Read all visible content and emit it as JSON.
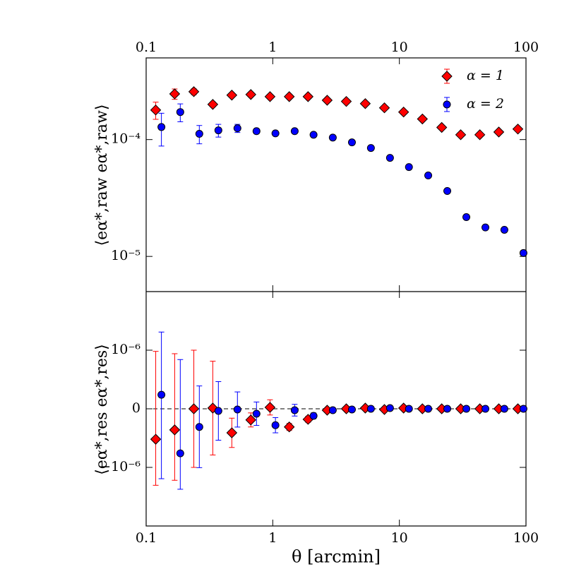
{
  "chart_data": [
    {
      "type": "scatter",
      "xscale": "log",
      "yscale": "log",
      "xlim": [
        0.1,
        100
      ],
      "xticks": [
        0.1,
        1,
        10,
        100
      ],
      "ylim": [
        5e-06,
        0.0005
      ],
      "yticks": [
        {
          "value": 0.0001,
          "label": "10⁻⁴"
        },
        {
          "value": 1e-05,
          "label": "10⁻⁵"
        }
      ],
      "ylabel": "⟨eα*,raw eα*,raw⟩",
      "legend": "upper right",
      "series": [
        {
          "name": "α = 1",
          "color": "#ff0000",
          "marker": "diamond",
          "x": [
            0.119,
            0.168,
            0.238,
            0.336,
            0.475,
            0.671,
            0.951,
            1.35,
            1.9,
            2.69,
            3.81,
            5.38,
            7.62,
            10.8,
            15.2,
            21.6,
            30.5,
            43.2,
            61.0,
            86.3
          ],
          "values": [
            0.000179,
            0.000246,
            0.000257,
            0.0002,
            0.00024,
            0.000243,
            0.000233,
            0.000233,
            0.000233,
            0.000217,
            0.000212,
            0.000203,
            0.000187,
            0.000172,
            0.00015,
            0.000127,
            0.00011,
            0.00011,
            0.000116,
            0.000123
          ],
          "errors": [
            3e-05,
            2.5e-05,
            1.5e-05,
            1e-05,
            5e-06,
            4e-06,
            4e-06,
            3e-06,
            3e-06,
            3e-06,
            3e-06,
            3e-06,
            2e-06,
            2e-06,
            2e-06,
            2e-06,
            2e-06,
            2e-06,
            2e-06,
            2e-06
          ]
        },
        {
          "name": "α = 2",
          "color": "#0000ff",
          "marker": "circle",
          "x": [
            0.132,
            0.186,
            0.263,
            0.372,
            0.526,
            0.744,
            1.05,
            1.49,
            2.1,
            2.98,
            4.22,
            5.96,
            8.43,
            11.9,
            16.9,
            23.9,
            33.8,
            47.8,
            67.5,
            95.5
          ],
          "values": [
            0.000128,
            0.000172,
            0.000112,
            0.00012,
            0.000125,
            0.000118,
            0.000113,
            0.000118,
            0.00011,
            0.000104,
            9.46e-05,
            8.47e-05,
            6.97e-05,
            5.82e-05,
            4.93e-05,
            3.63e-05,
            2.17e-05,
            1.77e-05,
            1.69e-05,
            1.07e-05
          ],
          "errors": [
            4e-05,
            3e-05,
            2e-05,
            1.5e-05,
            1e-05,
            6e-06,
            4e-06,
            3e-06,
            2e-06,
            2e-06,
            2e-06,
            2e-06,
            1e-06,
            1e-06,
            1e-06,
            1e-06,
            5e-07,
            5e-07,
            5e-07,
            5e-07
          ]
        }
      ]
    },
    {
      "type": "scatter",
      "xscale": "log",
      "yscale": "symlog",
      "linthresh": 1e-06,
      "xlim": [
        0.1,
        100
      ],
      "xticks": [
        0.1,
        1,
        10,
        100
      ],
      "ylim": [
        -1e-05,
        1e-05
      ],
      "yticks": [
        {
          "value": 1e-06,
          "label": "10⁻⁶"
        },
        0,
        {
          "value": -1e-06,
          "label": "−10⁻⁶"
        }
      ],
      "ylabel": "⟨eα*,res eα*,res⟩",
      "xlabel": "θ  [arcmin]",
      "series": [
        {
          "color": "#ff0000",
          "marker": "diamond",
          "x": [
            0.119,
            0.168,
            0.238,
            0.336,
            0.475,
            0.671,
            0.951,
            1.35,
            1.9,
            2.69,
            3.81,
            5.38,
            7.62,
            10.8,
            15.2,
            21.6,
            30.5,
            43.2,
            61.0,
            86.3
          ],
          "values": [
            -5.2e-07,
            -3.6e-07,
            0,
            1.2e-08,
            -4.1e-07,
            -1.9e-07,
            2.4e-08,
            -3.1e-07,
            -1.8e-07,
            -2.4e-08,
            0,
            1.2e-08,
            -1.2e-08,
            1.2e-08,
            0,
            0,
            0,
            0,
            0,
            0
          ],
          "errors": [
            1.5e-06,
            1.3e-06,
            1e-06,
            8e-07,
            2.5e-07,
            1.2e-07,
            1.3e-07,
            6e-08,
            5e-08,
            2e-08,
            1e-08,
            1e-08,
            1e-08,
            1e-08,
            1e-08,
            1e-08,
            1e-08,
            1e-08,
            1e-08,
            1e-08
          ]
        },
        {
          "color": "#0000ff",
          "marker": "circle",
          "x": [
            0.132,
            0.186,
            0.263,
            0.372,
            0.526,
            0.744,
            1.05,
            1.49,
            2.1,
            2.98,
            4.22,
            5.96,
            8.43,
            11.9,
            16.9,
            23.9,
            33.8,
            47.8,
            67.5,
            95.5
          ],
          "values": [
            2.4e-07,
            -7.6e-07,
            -3.1e-07,
            -3.6e-08,
            -1.2e-08,
            -8.4e-08,
            -2.8e-07,
            -2.4e-08,
            -1.2e-07,
            -2.4e-08,
            -1.2e-08,
            0,
            1.2e-08,
            0,
            0,
            0,
            0,
            0,
            0,
            0
          ],
          "errors": [
            1.8e-06,
            1.6e-06,
            7e-07,
            5e-07,
            3e-07,
            2e-07,
            1.3e-07,
            1e-07,
            5e-08,
            2e-08,
            1e-08,
            1e-08,
            1e-08,
            1e-08,
            1e-08,
            1e-08,
            1e-08,
            1e-08,
            1e-08,
            1e-08
          ]
        }
      ]
    }
  ]
}
